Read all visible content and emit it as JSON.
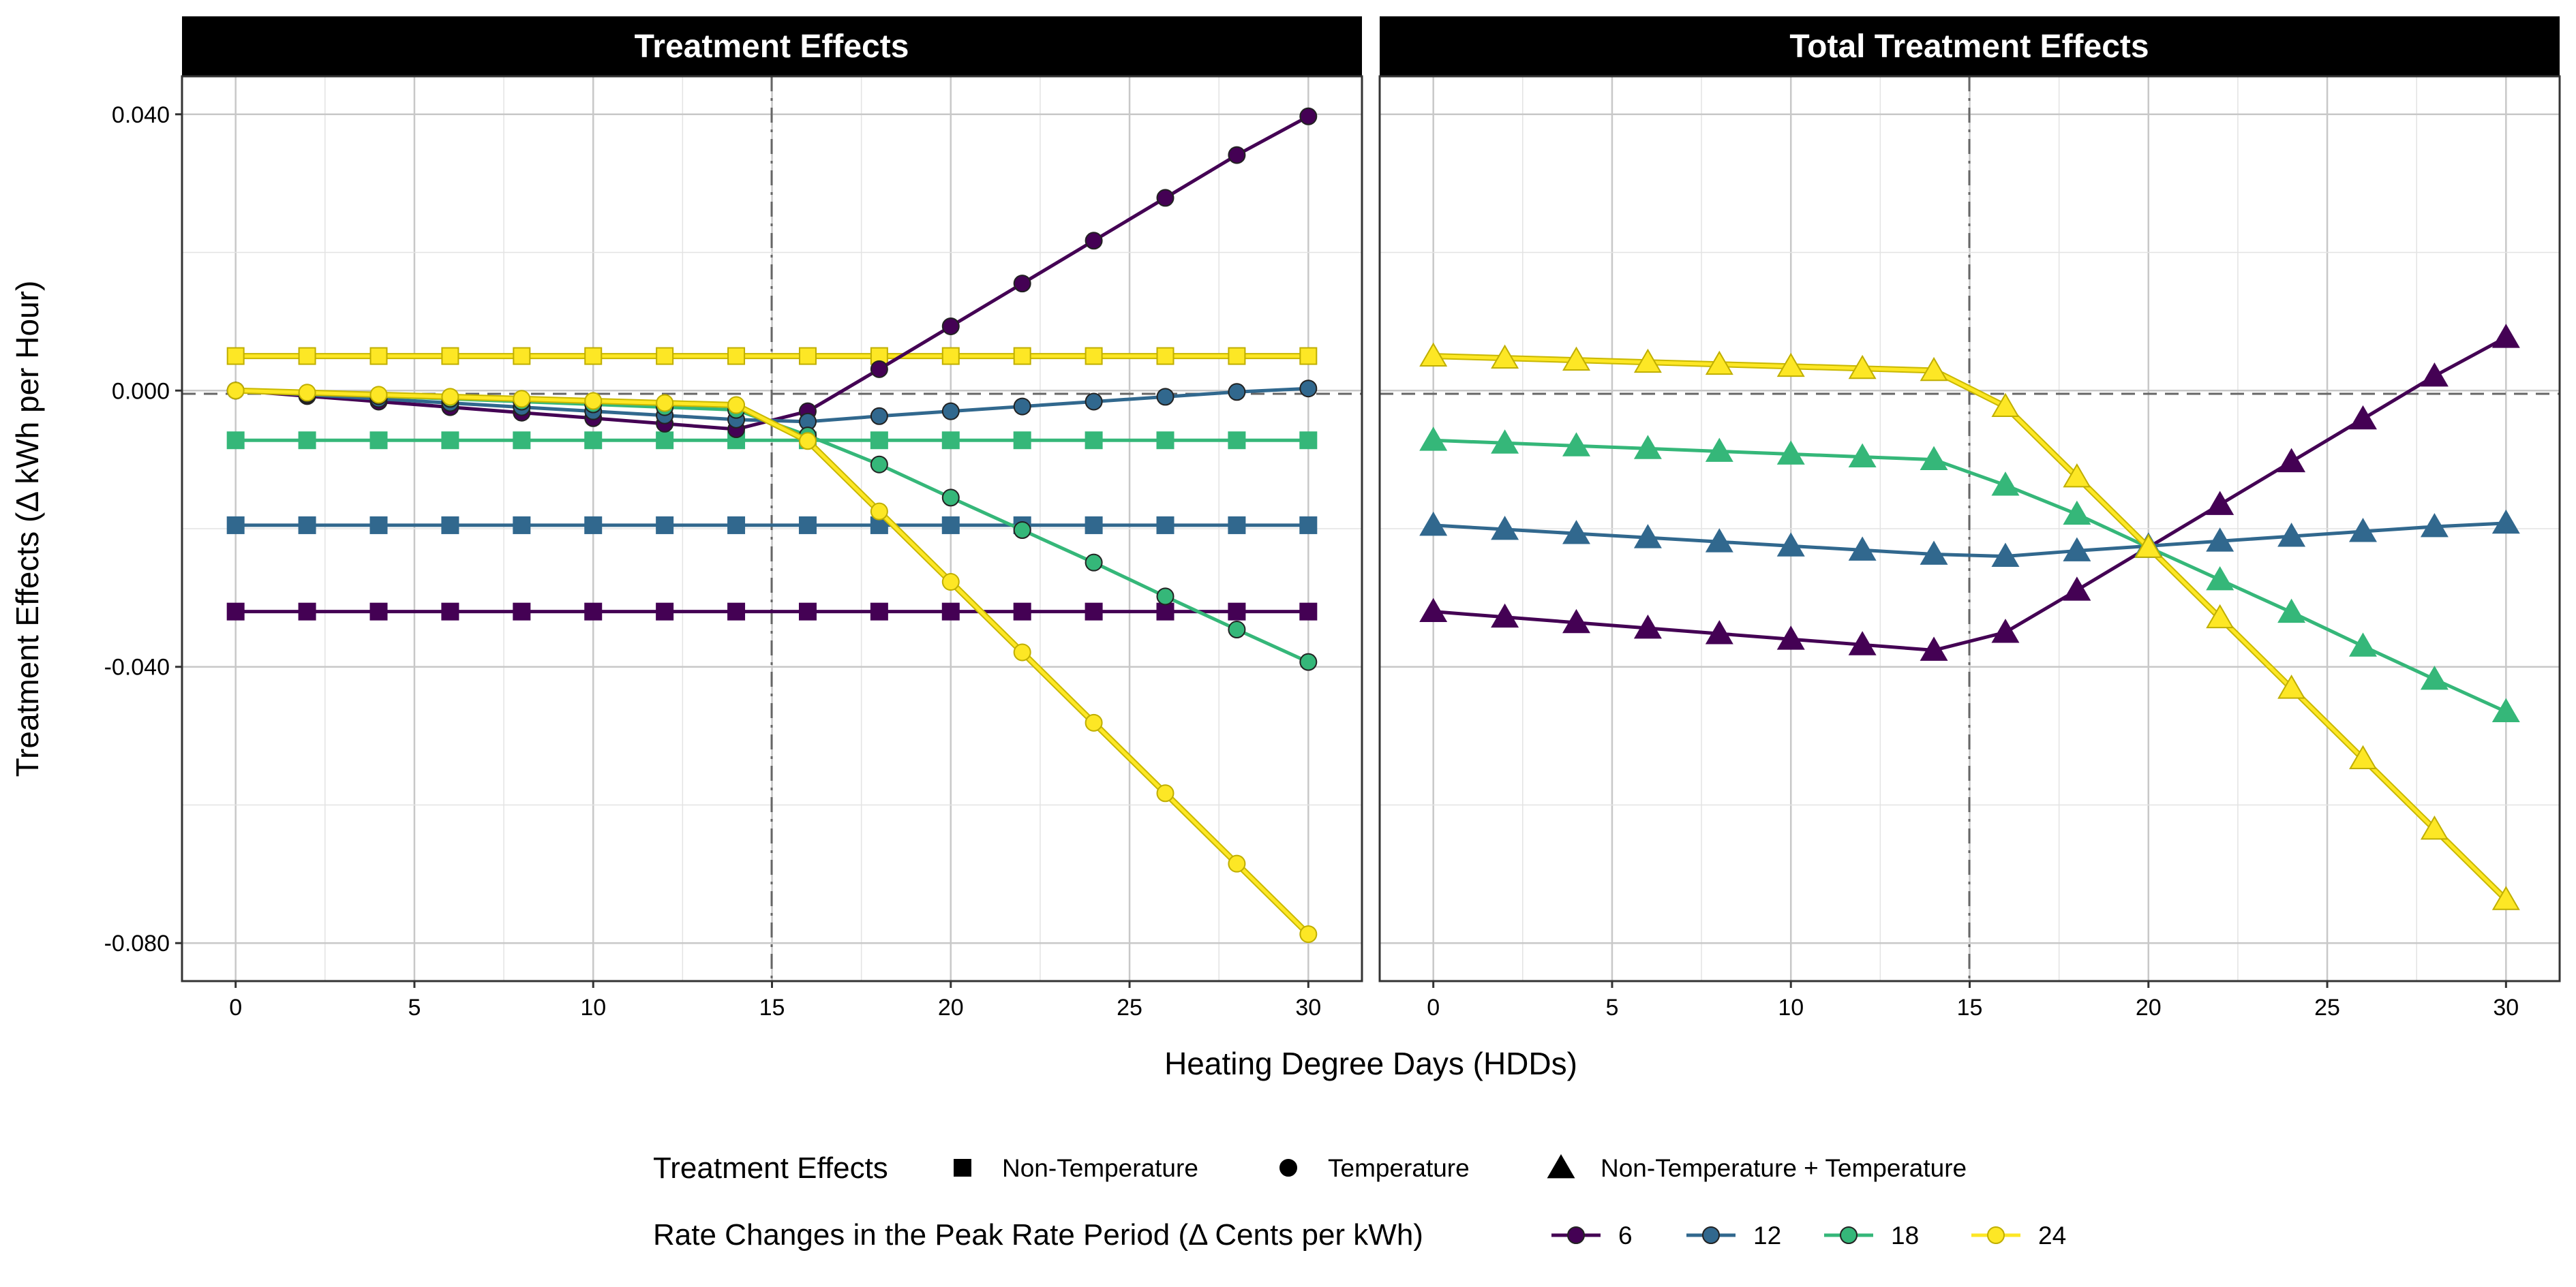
{
  "chart_data": {
    "type": "line",
    "y_axis_title": "Treatment Effects  (Δ kWh per Hour)",
    "x_axis_title": "Heating Degree Days  (HDDs)",
    "xlim": [
      -1.5,
      31.5
    ],
    "ylim": [
      -0.0855,
      0.0455
    ],
    "x_ticks": [
      0,
      5,
      10,
      15,
      20,
      25,
      30
    ],
    "x_tick_labels": [
      "0",
      "5",
      "10",
      "15",
      "20",
      "25",
      "30"
    ],
    "y_ticks": [
      0.04,
      0.0,
      -0.04,
      -0.08
    ],
    "y_tick_labels": [
      "0.040",
      "0.000",
      "-0.040",
      "-0.080"
    ],
    "reference_lines": {
      "vertical_x": 15,
      "horizontal_y": 0
    },
    "grid": true,
    "colors": {
      "6": "#440154",
      "12": "#31688E",
      "18": "#35B779",
      "24": "#FDE725"
    },
    "x": [
      0,
      2,
      4,
      6,
      8,
      10,
      12,
      14,
      16,
      18,
      20,
      22,
      24,
      26,
      28,
      30
    ],
    "panels": [
      {
        "title": "Treatment Effects",
        "series": [
          {
            "rate": "6",
            "effect": "Non-Temperature",
            "marker": "square",
            "values": [
              -0.032,
              -0.032,
              -0.032,
              -0.032,
              -0.032,
              -0.032,
              -0.032,
              -0.032,
              -0.032,
              -0.032,
              -0.032,
              -0.032,
              -0.032,
              -0.032,
              -0.032,
              -0.032
            ]
          },
          {
            "rate": "12",
            "effect": "Non-Temperature",
            "marker": "square",
            "values": [
              -0.0195,
              -0.0195,
              -0.0195,
              -0.0195,
              -0.0195,
              -0.0195,
              -0.0195,
              -0.0195,
              -0.0195,
              -0.0195,
              -0.0195,
              -0.0195,
              -0.0195,
              -0.0195,
              -0.0195,
              -0.0195
            ]
          },
          {
            "rate": "18",
            "effect": "Non-Temperature",
            "marker": "square",
            "values": [
              -0.0072,
              -0.0072,
              -0.0072,
              -0.0072,
              -0.0072,
              -0.0072,
              -0.0072,
              -0.0072,
              -0.0072,
              -0.0072,
              -0.0072,
              -0.0072,
              -0.0072,
              -0.0072,
              -0.0072,
              -0.0072
            ]
          },
          {
            "rate": "24",
            "effect": "Non-Temperature",
            "marker": "square",
            "values": [
              0.005,
              0.005,
              0.005,
              0.005,
              0.005,
              0.005,
              0.005,
              0.005,
              0.005,
              0.005,
              0.005,
              0.005,
              0.005,
              0.005,
              0.005,
              0.005
            ]
          },
          {
            "rate": "6",
            "effect": "Temperature",
            "marker": "circle",
            "values": [
              0.0,
              -0.0008,
              -0.0016,
              -0.0024,
              -0.0032,
              -0.004,
              -0.0048,
              -0.0056,
              -0.003,
              0.0031,
              0.0093,
              0.0155,
              0.0217,
              0.0279,
              0.0341,
              0.0397
            ]
          },
          {
            "rate": "12",
            "effect": "Temperature",
            "marker": "circle",
            "values": [
              0.0,
              -0.0006,
              -0.0012,
              -0.0018,
              -0.0024,
              -0.003,
              -0.0036,
              -0.0042,
              -0.0045,
              -0.0037,
              -0.003,
              -0.0023,
              -0.0016,
              -0.0009,
              -0.0002,
              0.0003
            ]
          },
          {
            "rate": "18",
            "effect": "Temperature",
            "marker": "circle",
            "values": [
              0.0,
              -0.0004,
              -0.0008,
              -0.0012,
              -0.0016,
              -0.002,
              -0.0024,
              -0.0028,
              -0.0065,
              -0.0107,
              -0.0155,
              -0.0202,
              -0.0249,
              -0.0298,
              -0.0346,
              -0.0393
            ]
          },
          {
            "rate": "24",
            "effect": "Temperature",
            "marker": "circle",
            "values": [
              0.0,
              -0.0003,
              -0.0006,
              -0.0009,
              -0.0012,
              -0.0015,
              -0.0018,
              -0.0021,
              -0.0073,
              -0.0175,
              -0.0277,
              -0.0379,
              -0.0481,
              -0.0583,
              -0.0685,
              -0.0787
            ]
          }
        ]
      },
      {
        "title": "Total Treatment Effects",
        "series": [
          {
            "rate": "6",
            "effect": "Non-Temperature + Temperature",
            "marker": "triangle",
            "values": [
              -0.032,
              -0.0328,
              -0.0336,
              -0.0344,
              -0.0352,
              -0.036,
              -0.0368,
              -0.0376,
              -0.035,
              -0.0289,
              -0.0227,
              -0.0165,
              -0.0103,
              -0.0041,
              0.0021,
              0.0077
            ]
          },
          {
            "rate": "12",
            "effect": "Non-Temperature + Temperature",
            "marker": "triangle",
            "values": [
              -0.0195,
              -0.0201,
              -0.0207,
              -0.0213,
              -0.0219,
              -0.0225,
              -0.0231,
              -0.0237,
              -0.024,
              -0.0232,
              -0.0225,
              -0.0218,
              -0.0211,
              -0.0204,
              -0.0197,
              -0.0192
            ]
          },
          {
            "rate": "18",
            "effect": "Non-Temperature + Temperature",
            "marker": "triangle",
            "values": [
              -0.0072,
              -0.0076,
              -0.008,
              -0.0084,
              -0.0088,
              -0.0092,
              -0.0096,
              -0.01,
              -0.0137,
              -0.0179,
              -0.0227,
              -0.0274,
              -0.0321,
              -0.037,
              -0.0418,
              -0.0465
            ]
          },
          {
            "rate": "24",
            "effect": "Non-Temperature + Temperature",
            "marker": "triangle",
            "values": [
              0.005,
              0.0047,
              0.0044,
              0.0041,
              0.0038,
              0.0035,
              0.0032,
              0.0029,
              -0.0023,
              -0.0125,
              -0.0227,
              -0.0329,
              -0.0431,
              -0.0533,
              -0.0635,
              -0.0737
            ]
          }
        ]
      }
    ],
    "legend": {
      "shape_title": "Treatment Effects",
      "shape_items": [
        {
          "marker": "square",
          "label": "Non-Temperature"
        },
        {
          "marker": "circle",
          "label": "Temperature"
        },
        {
          "marker": "triangle",
          "label": "Non-Temperature + Temperature"
        }
      ],
      "color_title": "Rate Changes in the Peak Rate Period  (Δ Cents per kWh)",
      "color_items": [
        {
          "key": "6",
          "label": "6"
        },
        {
          "key": "12",
          "label": "12"
        },
        {
          "key": "18",
          "label": "18"
        },
        {
          "key": "24",
          "label": "24"
        }
      ],
      "position": "bottom"
    }
  }
}
